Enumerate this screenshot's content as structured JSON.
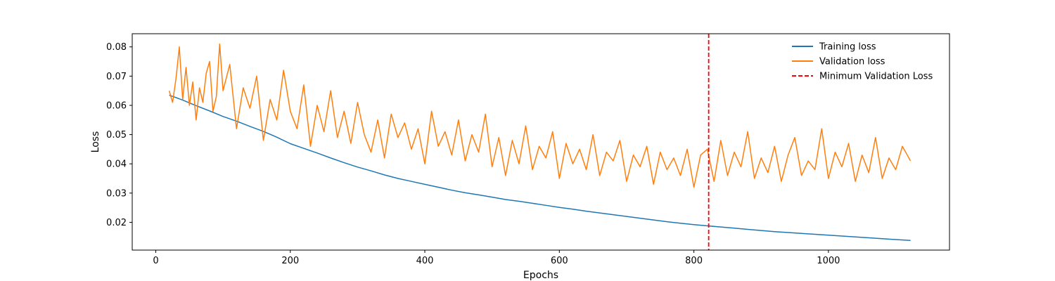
{
  "chart_data": {
    "type": "line",
    "title": "",
    "xlabel": "Epochs",
    "ylabel": "Loss",
    "xlim": [
      -35,
      1180
    ],
    "ylim": [
      0.0105,
      0.0845
    ],
    "x_ticks": [
      0,
      200,
      400,
      600,
      800,
      1000
    ],
    "y_ticks": [
      0.02,
      0.03,
      0.04,
      0.05,
      0.06,
      0.07,
      0.08
    ],
    "grid": false,
    "legend_position": "top-right",
    "series": [
      {
        "name": "Training loss",
        "color": "#1f77b4",
        "style": "solid",
        "x": [
          20,
          40,
          60,
          80,
          100,
          120,
          140,
          160,
          180,
          200,
          220,
          240,
          260,
          280,
          300,
          320,
          340,
          360,
          380,
          400,
          420,
          440,
          460,
          480,
          500,
          520,
          540,
          560,
          580,
          600,
          620,
          640,
          660,
          680,
          700,
          720,
          740,
          760,
          780,
          800,
          820,
          840,
          860,
          880,
          900,
          920,
          940,
          960,
          980,
          1000,
          1020,
          1040,
          1060,
          1080,
          1100,
          1122
        ],
        "values": [
          0.0635,
          0.0618,
          0.0599,
          0.0581,
          0.0562,
          0.0546,
          0.0528,
          0.0511,
          0.0491,
          0.0469,
          0.0453,
          0.0437,
          0.042,
          0.0404,
          0.0389,
          0.0376,
          0.0362,
          0.035,
          0.034,
          0.033,
          0.032,
          0.031,
          0.0301,
          0.0294,
          0.0286,
          0.0278,
          0.0272,
          0.0265,
          0.0258,
          0.0251,
          0.0245,
          0.0238,
          0.0232,
          0.0226,
          0.022,
          0.0214,
          0.0208,
          0.0202,
          0.0197,
          0.0192,
          0.0188,
          0.0184,
          0.018,
          0.0176,
          0.0172,
          0.0168,
          0.0165,
          0.0162,
          0.0159,
          0.0156,
          0.0153,
          0.015,
          0.0147,
          0.0144,
          0.0141,
          0.0138
        ]
      },
      {
        "name": "Validation loss",
        "color": "#ff7f0e",
        "style": "solid",
        "x": [
          20,
          25,
          30,
          35,
          40,
          45,
          50,
          55,
          60,
          65,
          70,
          75,
          80,
          85,
          90,
          95,
          100,
          110,
          120,
          130,
          140,
          150,
          160,
          170,
          180,
          190,
          200,
          210,
          220,
          230,
          240,
          250,
          260,
          270,
          280,
          290,
          300,
          310,
          320,
          330,
          340,
          350,
          360,
          370,
          380,
          390,
          400,
          410,
          420,
          430,
          440,
          450,
          460,
          470,
          480,
          490,
          500,
          510,
          520,
          530,
          540,
          550,
          560,
          570,
          580,
          590,
          600,
          610,
          620,
          630,
          640,
          650,
          660,
          670,
          680,
          690,
          700,
          710,
          720,
          730,
          740,
          750,
          760,
          770,
          780,
          790,
          800,
          810,
          820,
          830,
          840,
          850,
          860,
          870,
          880,
          890,
          900,
          910,
          920,
          930,
          940,
          950,
          960,
          970,
          980,
          990,
          1000,
          1010,
          1020,
          1030,
          1040,
          1050,
          1060,
          1070,
          1080,
          1090,
          1100,
          1110,
          1122
        ],
        "values": [
          0.065,
          0.061,
          0.069,
          0.08,
          0.062,
          0.073,
          0.06,
          0.068,
          0.055,
          0.066,
          0.061,
          0.071,
          0.075,
          0.058,
          0.063,
          0.081,
          0.065,
          0.074,
          0.052,
          0.066,
          0.059,
          0.07,
          0.048,
          0.062,
          0.055,
          0.072,
          0.058,
          0.052,
          0.067,
          0.046,
          0.06,
          0.051,
          0.065,
          0.049,
          0.058,
          0.047,
          0.061,
          0.05,
          0.044,
          0.055,
          0.042,
          0.057,
          0.049,
          0.054,
          0.045,
          0.052,
          0.04,
          0.058,
          0.046,
          0.051,
          0.043,
          0.055,
          0.041,
          0.05,
          0.044,
          0.057,
          0.039,
          0.049,
          0.036,
          0.048,
          0.04,
          0.053,
          0.038,
          0.046,
          0.042,
          0.051,
          0.035,
          0.047,
          0.04,
          0.045,
          0.038,
          0.05,
          0.036,
          0.044,
          0.041,
          0.048,
          0.034,
          0.043,
          0.039,
          0.046,
          0.033,
          0.044,
          0.038,
          0.042,
          0.036,
          0.045,
          0.032,
          0.043,
          0.045,
          0.034,
          0.048,
          0.036,
          0.044,
          0.039,
          0.051,
          0.035,
          0.042,
          0.037,
          0.046,
          0.034,
          0.043,
          0.049,
          0.036,
          0.041,
          0.038,
          0.052,
          0.035,
          0.044,
          0.039,
          0.047,
          0.034,
          0.043,
          0.037,
          0.049,
          0.035,
          0.042,
          0.038,
          0.046,
          0.041
        ]
      }
    ],
    "vlines": [
      {
        "name": "Minimum Validation Loss",
        "x": 822,
        "color": "#ff0000",
        "style": "dashed"
      }
    ],
    "legend": [
      "Training loss",
      "Validation loss",
      "Minimum Validation Loss"
    ]
  }
}
